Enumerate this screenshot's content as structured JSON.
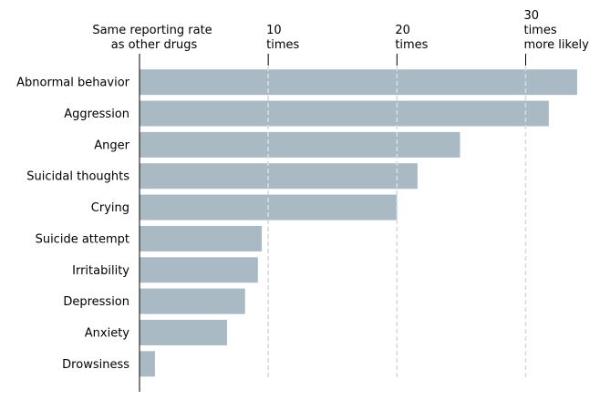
{
  "chart_data": {
    "type": "bar",
    "orientation": "horizontal",
    "categories": [
      "Abnormal behavior",
      "Aggression",
      "Anger",
      "Suicidal thoughts",
      "Crying",
      "Suicide attempt",
      "Irritability",
      "Depression",
      "Anxiety",
      "Drowsiness"
    ],
    "values": [
      34,
      31.8,
      24.9,
      21.6,
      20,
      9.5,
      9.2,
      8.2,
      6.8,
      1.2
    ],
    "xlim": [
      0,
      34.5
    ],
    "reference_lines": [
      {
        "value": 10,
        "lines": [
          "10",
          "times"
        ]
      },
      {
        "value": 20,
        "lines": [
          "20",
          "times"
        ]
      },
      {
        "value": 30,
        "lines": [
          "30",
          "times",
          "more likely"
        ]
      }
    ],
    "baseline_label": [
      "Same reporting rate",
      " as other drugs"
    ],
    "bar_color": "#aabac5",
    "grid_line_color": "#d3dce2",
    "grid": false
  }
}
